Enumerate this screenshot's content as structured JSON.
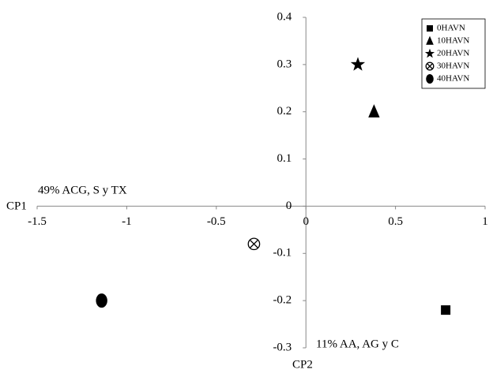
{
  "chart_data": {
    "type": "scatter",
    "xlabel": "CP1",
    "ylabel": "CP2",
    "annotations": [
      "49% ACG, S y TX",
      "11% AA, AG y C"
    ],
    "xlim": [
      -1.5,
      1
    ],
    "ylim": [
      -0.3,
      0.4
    ],
    "xticks": [
      -1.5,
      -1,
      -0.5,
      0,
      0.5,
      1
    ],
    "yticks": [
      -0.3,
      -0.2,
      -0.1,
      0,
      0.1,
      0.2,
      0.3,
      0.4
    ],
    "legend": "upper right",
    "series": [
      {
        "name": "0HAVN",
        "color": "#000000",
        "marker": "square",
        "x": [
          0.78
        ],
        "y": [
          -0.22
        ]
      },
      {
        "name": "10HAVN",
        "color": "#000000",
        "marker": "triangle",
        "x": [
          0.38
        ],
        "y": [
          0.2
        ]
      },
      {
        "name": "20HAVN",
        "color": "#000000",
        "marker": "star",
        "x": [
          0.29
        ],
        "y": [
          0.3
        ]
      },
      {
        "name": "30HAVN",
        "color": "#000000",
        "marker": "circle-x",
        "x": [
          -0.29
        ],
        "y": [
          -0.08
        ]
      },
      {
        "name": "40HAVN",
        "color": "#000000",
        "marker": "ellipse",
        "x": [
          -1.14
        ],
        "y": [
          -0.2
        ]
      }
    ]
  }
}
